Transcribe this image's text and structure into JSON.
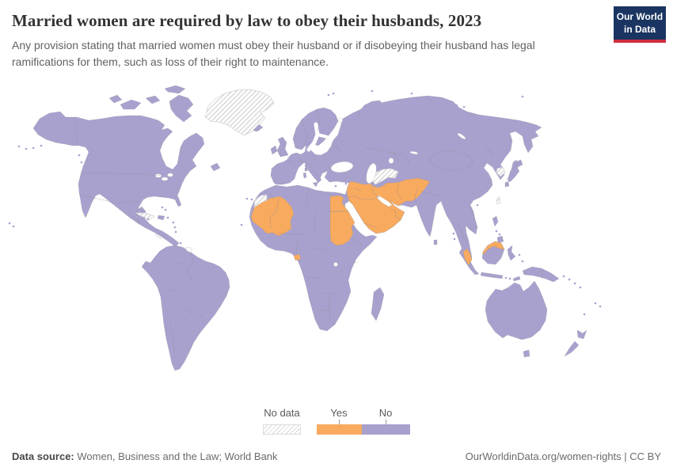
{
  "header": {
    "title": "Married women are required by law to obey their husbands, 2023",
    "subtitle": "Any provision stating that married women must obey their husband or if disobeying their husband has legal ramifications for them, such as loss of their right to maintenance.",
    "logo": {
      "line1": "Our World",
      "line2": "in Data"
    }
  },
  "legend": {
    "no_data_label": "No data",
    "yes_label": "Yes",
    "no_label": "No"
  },
  "colors": {
    "yes": "#f8aa5f",
    "no": "#a8a1ce",
    "border": "#8f8f8f",
    "hatch_line": "#d4d4d4",
    "ocean": "#ffffff",
    "logo_bg": "#1a3561",
    "logo_accent": "#cf2e41"
  },
  "footer": {
    "source_label": "Data source:",
    "source_value": "Women, Business and the Law; World Bank",
    "rights": "OurWorldinData.org/women-rights | CC BY"
  },
  "chart_data": {
    "type": "heatmap",
    "subtype": "choropleth-world-map",
    "title": "Married women are required by law to obey their husbands, 2023",
    "legend": [
      {
        "label": "No data",
        "style": "hatched"
      },
      {
        "label": "Yes",
        "color": "#f8aa5f"
      },
      {
        "label": "No",
        "color": "#a8a1ce"
      }
    ],
    "legend_position": "bottom-center",
    "yes_countries": [
      "Mauritania",
      "Mali",
      "Egypt",
      "Sudan",
      "Equatorial Guinea",
      "Jordan",
      "Syria",
      "Iraq",
      "Iran",
      "Afghanistan",
      "Saudi Arabia",
      "Kuwait",
      "Bahrain",
      "Qatar",
      "United Arab Emirates",
      "Oman",
      "Yemen",
      "Malaysia",
      "Brunei"
    ],
    "no_data_regions": [
      "Greenland",
      "Cuba",
      "Western Sahara",
      "Turkmenistan",
      "North Korea",
      "Taiwan"
    ],
    "default_category": "No — all remaining countries shown in purple"
  }
}
